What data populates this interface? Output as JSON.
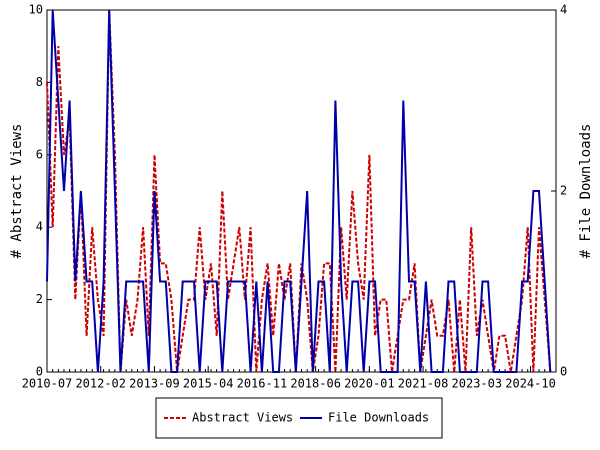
{
  "chart_data": {
    "type": "line",
    "x": [
      "2010-07",
      "2010-09",
      "2010-11",
      "2011-01",
      "2011-03",
      "2011-05",
      "2011-07",
      "2011-09",
      "2011-11",
      "2012-01",
      "2012-03",
      "2012-05",
      "2012-07",
      "2012-09",
      "2012-11",
      "2013-01",
      "2013-03",
      "2013-05",
      "2013-07",
      "2013-09",
      "2013-11",
      "2014-01",
      "2014-03",
      "2014-05",
      "2014-07",
      "2014-09",
      "2014-11",
      "2015-01",
      "2015-03",
      "2015-05",
      "2015-07",
      "2015-09",
      "2015-11",
      "2016-01",
      "2016-03",
      "2016-05",
      "2016-07",
      "2016-09",
      "2016-11",
      "2017-01",
      "2017-03",
      "2017-05",
      "2017-07",
      "2017-09",
      "2017-11",
      "2018-01",
      "2018-03",
      "2018-05",
      "2018-07",
      "2018-09",
      "2018-11",
      "2019-01",
      "2019-03",
      "2019-05",
      "2019-07",
      "2019-09",
      "2019-11",
      "2020-01",
      "2020-03",
      "2020-05",
      "2020-07",
      "2020-09",
      "2020-11",
      "2021-01",
      "2021-03",
      "2021-05",
      "2021-07",
      "2021-09",
      "2021-11",
      "2022-01",
      "2022-03",
      "2022-05",
      "2022-07",
      "2022-09",
      "2022-11",
      "2023-01",
      "2023-03",
      "2023-05",
      "2023-07",
      "2023-09",
      "2023-11",
      "2024-01",
      "2024-03",
      "2024-05",
      "2024-07",
      "2024-09",
      "2024-11",
      "2025-01",
      "2025-03",
      "2025-05"
    ],
    "xlim": [
      "2010-07",
      "2025-07"
    ],
    "xticks": [
      "2010-07",
      "2012-02",
      "2013-09",
      "2015-04",
      "2016-11",
      "2018-06",
      "2020-01",
      "2021-08",
      "2023-03",
      "2024-10"
    ],
    "ylim": [
      0,
      10
    ],
    "yticks": [
      0,
      2,
      4,
      6,
      8,
      10
    ],
    "y2lim": [
      0,
      4
    ],
    "y2ticks": [
      0,
      2,
      4
    ],
    "ylabel": "# Abstract Views",
    "y2label": "# File Downloads",
    "legend": "bottom",
    "series": [
      {
        "name": "Abstract Views",
        "color": "#cc0000",
        "dash": true,
        "values": [
          8,
          4,
          9,
          6,
          7,
          2,
          5,
          1,
          4,
          2,
          1,
          10,
          6,
          0,
          2,
          1,
          2,
          4,
          1,
          6,
          3,
          3,
          2,
          0,
          1,
          2,
          2,
          4,
          2,
          3,
          1,
          5,
          2,
          3,
          4,
          2,
          4,
          0,
          2,
          3,
          1,
          3,
          2,
          3,
          0,
          3,
          2,
          0,
          1,
          3,
          3,
          0,
          4,
          2,
          5,
          3,
          2,
          6,
          1,
          2,
          2,
          0,
          1,
          2,
          2,
          3,
          0,
          1,
          2,
          1,
          1,
          2,
          0,
          2,
          0,
          4,
          1,
          2,
          1,
          0,
          1,
          1,
          0,
          1,
          2,
          4,
          0,
          4,
          2,
          0
        ]
      },
      {
        "name": "File Downloads",
        "color": "#0000aa",
        "dash": false,
        "axis": "y2",
        "values": [
          1,
          4,
          3,
          2,
          3,
          1,
          2,
          1,
          1,
          0,
          1,
          4,
          2,
          0,
          1,
          1,
          1,
          1,
          0,
          2,
          1,
          1,
          0,
          0,
          1,
          1,
          1,
          0,
          1,
          1,
          1,
          0,
          1,
          1,
          1,
          1,
          0,
          1,
          0,
          1,
          0,
          0,
          1,
          1,
          0,
          1,
          2,
          0,
          1,
          1,
          0,
          3,
          1,
          0,
          1,
          1,
          0,
          1,
          1,
          0,
          0,
          0,
          0,
          3,
          1,
          1,
          0,
          1,
          0,
          0,
          0,
          1,
          1,
          0,
          0,
          0,
          0,
          1,
          1,
          0,
          0,
          0,
          0,
          0,
          1,
          1,
          2,
          2,
          1,
          0
        ]
      }
    ]
  }
}
